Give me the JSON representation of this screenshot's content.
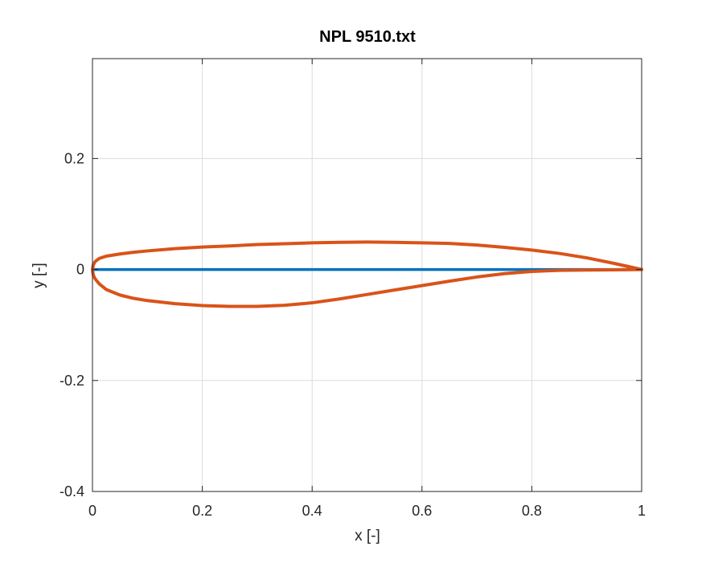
{
  "chart_data": {
    "type": "line",
    "title": "NPL 9510.txt",
    "xlabel": "x [-]",
    "ylabel": "y [-]",
    "xlim": [
      0,
      1
    ],
    "ylim": [
      -0.4,
      0.38
    ],
    "grid": true,
    "x_ticks": [
      {
        "value": 0,
        "label": "0"
      },
      {
        "value": 0.2,
        "label": "0.2"
      },
      {
        "value": 0.4,
        "label": "0.4"
      },
      {
        "value": 0.6,
        "label": "0.6"
      },
      {
        "value": 0.8,
        "label": "0.8"
      },
      {
        "value": 1,
        "label": "1"
      }
    ],
    "y_ticks": [
      {
        "value": -0.4,
        "label": "-0.4"
      },
      {
        "value": -0.2,
        "label": "-0.2"
      },
      {
        "value": 0,
        "label": "0"
      },
      {
        "value": 0.2,
        "label": "0.2"
      }
    ],
    "series": [
      {
        "color": "#0072BD",
        "x": [
          0,
          1
        ],
        "y": [
          0,
          0
        ]
      },
      {
        "color": "#D95319",
        "x": [
          1.0,
          0.95,
          0.9,
          0.85,
          0.8,
          0.75,
          0.7,
          0.65,
          0.6,
          0.55,
          0.5,
          0.45,
          0.4,
          0.35,
          0.3,
          0.25,
          0.2,
          0.15,
          0.1,
          0.075,
          0.05,
          0.025,
          0.0125,
          0.005,
          0.0015,
          0.0,
          0.0015,
          0.005,
          0.0125,
          0.025,
          0.05,
          0.075,
          0.1,
          0.15,
          0.2,
          0.25,
          0.3,
          0.35,
          0.4,
          0.45,
          0.5,
          0.55,
          0.6,
          0.65,
          0.7,
          0.75,
          0.8,
          0.85,
          0.9,
          0.95,
          1.0
        ],
        "y": [
          0.0,
          0.011,
          0.021,
          0.029,
          0.035,
          0.04,
          0.044,
          0.047,
          0.048,
          0.049,
          0.0495,
          0.049,
          0.048,
          0.0465,
          0.045,
          0.0425,
          0.0405,
          0.0375,
          0.0335,
          0.031,
          0.028,
          0.024,
          0.02,
          0.0145,
          0.0085,
          0.0,
          -0.01,
          -0.017,
          -0.026,
          -0.036,
          -0.046,
          -0.052,
          -0.056,
          -0.0615,
          -0.065,
          -0.0665,
          -0.0665,
          -0.0645,
          -0.06,
          -0.053,
          -0.045,
          -0.037,
          -0.029,
          -0.021,
          -0.0135,
          -0.0075,
          -0.0035,
          -0.0015,
          -0.001,
          -0.0005,
          0.0
        ]
      }
    ]
  }
}
